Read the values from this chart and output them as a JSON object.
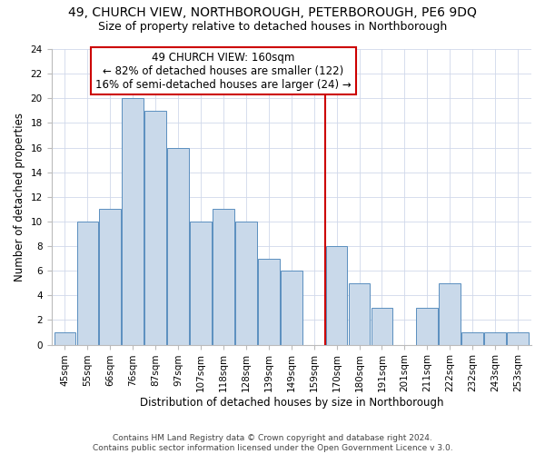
{
  "title_line1": "49, CHURCH VIEW, NORTHBOROUGH, PETERBOROUGH, PE6 9DQ",
  "title_line2": "Size of property relative to detached houses in Northborough",
  "xlabel": "Distribution of detached houses by size in Northborough",
  "ylabel": "Number of detached properties",
  "bar_labels": [
    "45sqm",
    "55sqm",
    "66sqm",
    "76sqm",
    "87sqm",
    "97sqm",
    "107sqm",
    "118sqm",
    "128sqm",
    "139sqm",
    "149sqm",
    "159sqm",
    "170sqm",
    "180sqm",
    "191sqm",
    "201sqm",
    "211sqm",
    "222sqm",
    "232sqm",
    "243sqm",
    "253sqm"
  ],
  "bar_values": [
    1,
    10,
    11,
    20,
    19,
    16,
    10,
    11,
    10,
    7,
    6,
    0,
    8,
    5,
    3,
    0,
    3,
    5,
    1,
    1,
    1
  ],
  "bar_color": "#c9d9ea",
  "bar_edge_color": "#5a8fbf",
  "vline_x": 11.5,
  "vline_color": "#cc0000",
  "annotation_box_text": "49 CHURCH VIEW: 160sqm\n← 82% of detached houses are smaller (122)\n16% of semi-detached houses are larger (24) →",
  "box_edge_color": "#cc0000",
  "ylim": [
    0,
    24
  ],
  "yticks": [
    0,
    2,
    4,
    6,
    8,
    10,
    12,
    14,
    16,
    18,
    20,
    22,
    24
  ],
  "grid_color": "#d0d8ea",
  "footnote": "Contains HM Land Registry data © Crown copyright and database right 2024.\nContains public sector information licensed under the Open Government Licence v 3.0.",
  "title1_fontsize": 10,
  "title2_fontsize": 9,
  "xlabel_fontsize": 8.5,
  "ylabel_fontsize": 8.5,
  "tick_fontsize": 7.5,
  "annot_fontsize": 8.5,
  "footnote_fontsize": 6.5
}
